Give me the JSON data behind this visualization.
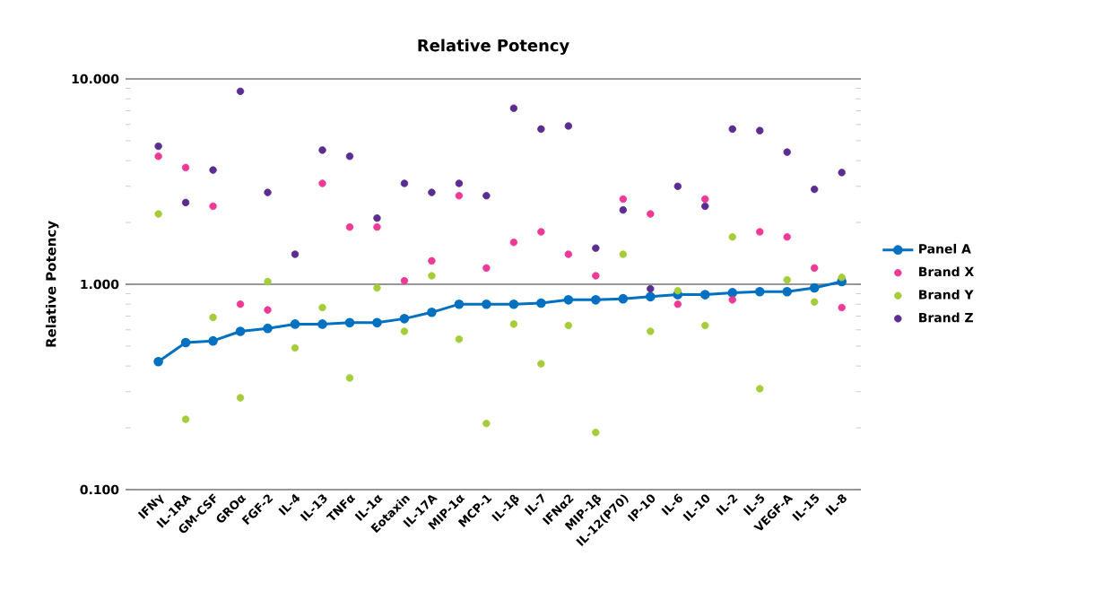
{
  "chart_data": {
    "type": "scatter",
    "title": "Relative Potency",
    "ylabel": "Relative Potency",
    "categories": [
      "IFNγ",
      "IL-1RA",
      "GM-CSF",
      "GROα",
      "FGF-2",
      "IL-4",
      "IL-13",
      "TNFα",
      "IL-1α",
      "Eotaxin",
      "IL-17A",
      "MIP-1α",
      "MCP-1",
      "IL-1β",
      "IL-7",
      "IFNα2",
      "MIP-1β",
      "IL-12(P70)",
      "IP-10",
      "IL-6",
      "IL-10",
      "IL-2",
      "IL-5",
      "VEGF-A",
      "IL-15",
      "IL-8"
    ],
    "series": [
      {
        "name": "Panel A",
        "type": "line",
        "color": "#0070c0",
        "values": [
          0.42,
          0.52,
          0.53,
          0.59,
          0.61,
          0.64,
          0.64,
          0.65,
          0.65,
          0.68,
          0.73,
          0.8,
          0.8,
          0.8,
          0.81,
          0.84,
          0.84,
          0.85,
          0.87,
          0.89,
          0.89,
          0.91,
          0.92,
          0.92,
          0.96,
          1.03
        ]
      },
      {
        "name": "Brand X",
        "color": "#ee3a96",
        "values": [
          4.2,
          3.7,
          2.4,
          0.8,
          0.75,
          null,
          3.1,
          1.9,
          1.9,
          1.04,
          1.3,
          2.7,
          1.2,
          1.6,
          1.8,
          1.4,
          1.1,
          2.6,
          2.2,
          0.8,
          2.6,
          0.84,
          1.8,
          1.7,
          1.2,
          0.77
        ]
      },
      {
        "name": "Brand Y",
        "color": "#a5cd39",
        "values": [
          2.2,
          0.22,
          0.69,
          0.28,
          1.03,
          0.49,
          0.77,
          0.35,
          0.96,
          0.59,
          1.1,
          0.54,
          0.21,
          0.64,
          0.41,
          0.63,
          0.19,
          1.4,
          0.59,
          0.93,
          0.63,
          1.7,
          0.31,
          1.05,
          0.82,
          1.08
        ]
      },
      {
        "name": "Brand Z",
        "color": "#5b2d90",
        "values": [
          4.7,
          2.5,
          3.6,
          8.7,
          2.8,
          1.4,
          4.5,
          4.2,
          2.1,
          3.1,
          2.8,
          3.1,
          2.7,
          7.2,
          5.7,
          5.9,
          1.5,
          2.3,
          0.95,
          3.0,
          2.4,
          5.7,
          5.6,
          4.4,
          2.9,
          3.5
        ]
      }
    ],
    "log": "y",
    "ylim": [
      0.1,
      10
    ],
    "yticks": [
      {
        "value": 0.1,
        "label": "0.100"
      },
      {
        "value": 1,
        "label": "1.000"
      },
      {
        "value": 10,
        "label": "10.000"
      }
    ],
    "grid": "y",
    "legend": "right",
    "marker": "circle"
  }
}
